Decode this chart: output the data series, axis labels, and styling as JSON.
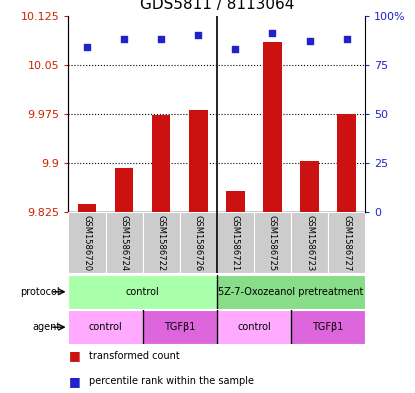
{
  "title": "GDS5811 / 8113064",
  "samples": [
    "GSM1586720",
    "GSM1586724",
    "GSM1586722",
    "GSM1586726",
    "GSM1586721",
    "GSM1586725",
    "GSM1586723",
    "GSM1586727"
  ],
  "bar_values": [
    9.838,
    9.893,
    9.974,
    9.981,
    9.858,
    10.085,
    9.903,
    9.975
  ],
  "dot_values": [
    84,
    88,
    88,
    90,
    83,
    91,
    87,
    88
  ],
  "ymin": 9.825,
  "ymax": 10.125,
  "yticks": [
    9.825,
    9.9,
    9.975,
    10.05,
    10.125
  ],
  "ytick_labels": [
    "9.825",
    "9.9",
    "9.975",
    "10.05",
    "10.125"
  ],
  "y2min": 0,
  "y2max": 100,
  "y2ticks": [
    0,
    25,
    50,
    75,
    100
  ],
  "y2tick_labels": [
    "0",
    "25",
    "50",
    "75",
    "100%"
  ],
  "protocol_groups": [
    {
      "label": "control",
      "start": 0,
      "end": 4,
      "color": "#aaffaa"
    },
    {
      "label": "5Z-7-Oxozeanol pretreatment",
      "start": 4,
      "end": 8,
      "color": "#88dd88"
    }
  ],
  "agent_groups": [
    {
      "label": "control",
      "start": 0,
      "end": 2,
      "color": "#ffaaff"
    },
    {
      "label": "TGFβ1",
      "start": 2,
      "end": 4,
      "color": "#dd66dd"
    },
    {
      "label": "control",
      "start": 4,
      "end": 6,
      "color": "#ffaaff"
    },
    {
      "label": "TGFβ1",
      "start": 6,
      "end": 8,
      "color": "#dd66dd"
    }
  ],
  "bar_color": "#cc1111",
  "dot_color": "#2222cc",
  "background_color": "#ffffff",
  "title_fontsize": 11,
  "tick_fontsize": 8,
  "label_fontsize": 7,
  "sample_box_color": "#cccccc"
}
